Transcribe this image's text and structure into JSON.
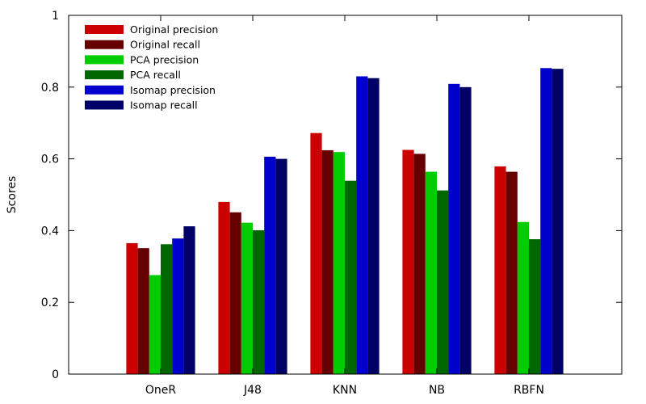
{
  "chart_data": {
    "type": "bar",
    "title": "",
    "xlabel": "",
    "ylabel": "Scores",
    "ylim": [
      0,
      1
    ],
    "yticks": [
      0,
      0.2,
      0.4,
      0.6,
      0.8,
      1
    ],
    "ytick_labels": [
      "0",
      "0.2",
      "0.4",
      "0.6",
      "0.8",
      "1"
    ],
    "grid": false,
    "legend_position": "top-left",
    "categories": [
      "OneR",
      "J48",
      "KNN",
      "NB",
      "RBFN"
    ],
    "series": [
      {
        "name": "Original precision",
        "color": "#cc0000",
        "values": [
          0.365,
          0.48,
          0.672,
          0.625,
          0.579
        ]
      },
      {
        "name": "Original recall",
        "color": "#660000",
        "values": [
          0.351,
          0.451,
          0.624,
          0.614,
          0.564
        ]
      },
      {
        "name": "PCA precision",
        "color": "#00cc00",
        "values": [
          0.276,
          0.422,
          0.619,
          0.564,
          0.424
        ]
      },
      {
        "name": "PCA recall",
        "color": "#006600",
        "values": [
          0.362,
          0.401,
          0.539,
          0.512,
          0.376
        ]
      },
      {
        "name": "Isomap precision",
        "color": "#0000cc",
        "values": [
          0.378,
          0.606,
          0.83,
          0.809,
          0.853
        ]
      },
      {
        "name": "Isomap recall",
        "color": "#000066",
        "values": [
          0.412,
          0.6,
          0.825,
          0.8,
          0.851
        ]
      }
    ]
  }
}
